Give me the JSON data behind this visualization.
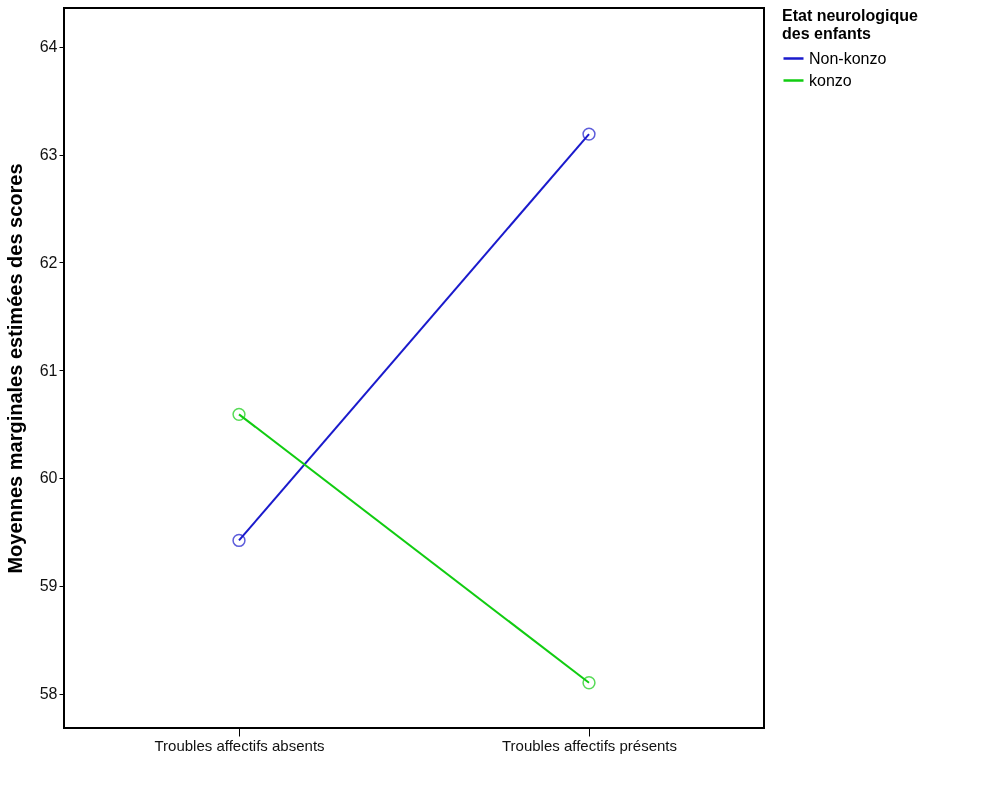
{
  "chart_data": {
    "type": "line",
    "ylabel": "Moyennes marginales estimées des scores",
    "legend_title": "Etat neurologique des enfants",
    "categories": [
      "Troubles affectifs absents",
      "Troubles affectifs présents"
    ],
    "series": [
      {
        "name": "Non-konzo",
        "color": "#1a1acc",
        "values": [
          59.42,
          63.19
        ]
      },
      {
        "name": "konzo",
        "color": "#11cc11",
        "values": [
          60.59,
          58.1
        ]
      }
    ],
    "ylim": [
      57.68,
      64.36
    ],
    "yticks": [
      58,
      59,
      60,
      61,
      62,
      63,
      64
    ],
    "marker": "circle",
    "line_style": "solid",
    "grid": false,
    "legend": "right"
  }
}
